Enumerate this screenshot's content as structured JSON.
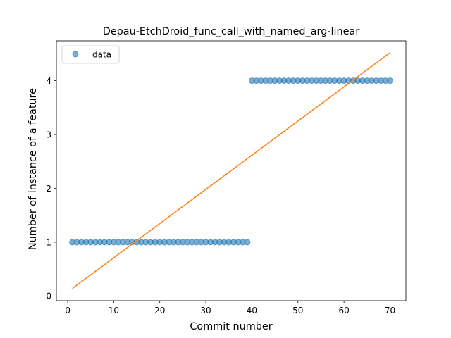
{
  "chart_data": {
    "type": "scatter",
    "title": "Depau-EtchDroid_func_call_with_named_arg-linear",
    "xlabel": "Commit number",
    "ylabel": "Number of instance of a feature",
    "xlim": [
      -2.45,
      73.45
    ],
    "ylim": [
      -0.086,
      4.74
    ],
    "xticks": [
      0,
      10,
      20,
      30,
      40,
      50,
      60,
      70
    ],
    "yticks": [
      0,
      1,
      2,
      3,
      4
    ],
    "legend": {
      "placement": "upper left",
      "entries": [
        "data"
      ]
    },
    "grid": false,
    "colors": {
      "data": "#1f77b4",
      "fit": "#ff7f0e"
    },
    "series": [
      {
        "name": "data",
        "kind": "scatter",
        "x": [
          1,
          2,
          3,
          4,
          5,
          6,
          7,
          8,
          9,
          10,
          11,
          12,
          13,
          14,
          15,
          16,
          17,
          18,
          19,
          20,
          21,
          22,
          23,
          24,
          25,
          26,
          27,
          28,
          29,
          30,
          31,
          32,
          33,
          34,
          35,
          36,
          37,
          38,
          39,
          40,
          41,
          42,
          43,
          44,
          45,
          46,
          47,
          48,
          49,
          50,
          51,
          52,
          53,
          54,
          55,
          56,
          57,
          58,
          59,
          60,
          61,
          62,
          63,
          64,
          65,
          66,
          67,
          68,
          69,
          70
        ],
        "y": [
          1,
          1,
          1,
          1,
          1,
          1,
          1,
          1,
          1,
          1,
          1,
          1,
          1,
          1,
          1,
          1,
          1,
          1,
          1,
          1,
          1,
          1,
          1,
          1,
          1,
          1,
          1,
          1,
          1,
          1,
          1,
          1,
          1,
          1,
          1,
          1,
          1,
          1,
          1,
          4,
          4,
          4,
          4,
          4,
          4,
          4,
          4,
          4,
          4,
          4,
          4,
          4,
          4,
          4,
          4,
          4,
          4,
          4,
          4,
          4,
          4,
          4,
          4,
          4,
          4,
          4,
          4,
          4,
          4,
          4
        ]
      },
      {
        "kind": "line",
        "x": [
          1,
          70
        ],
        "y": [
          0.14,
          4.52
        ]
      }
    ]
  }
}
